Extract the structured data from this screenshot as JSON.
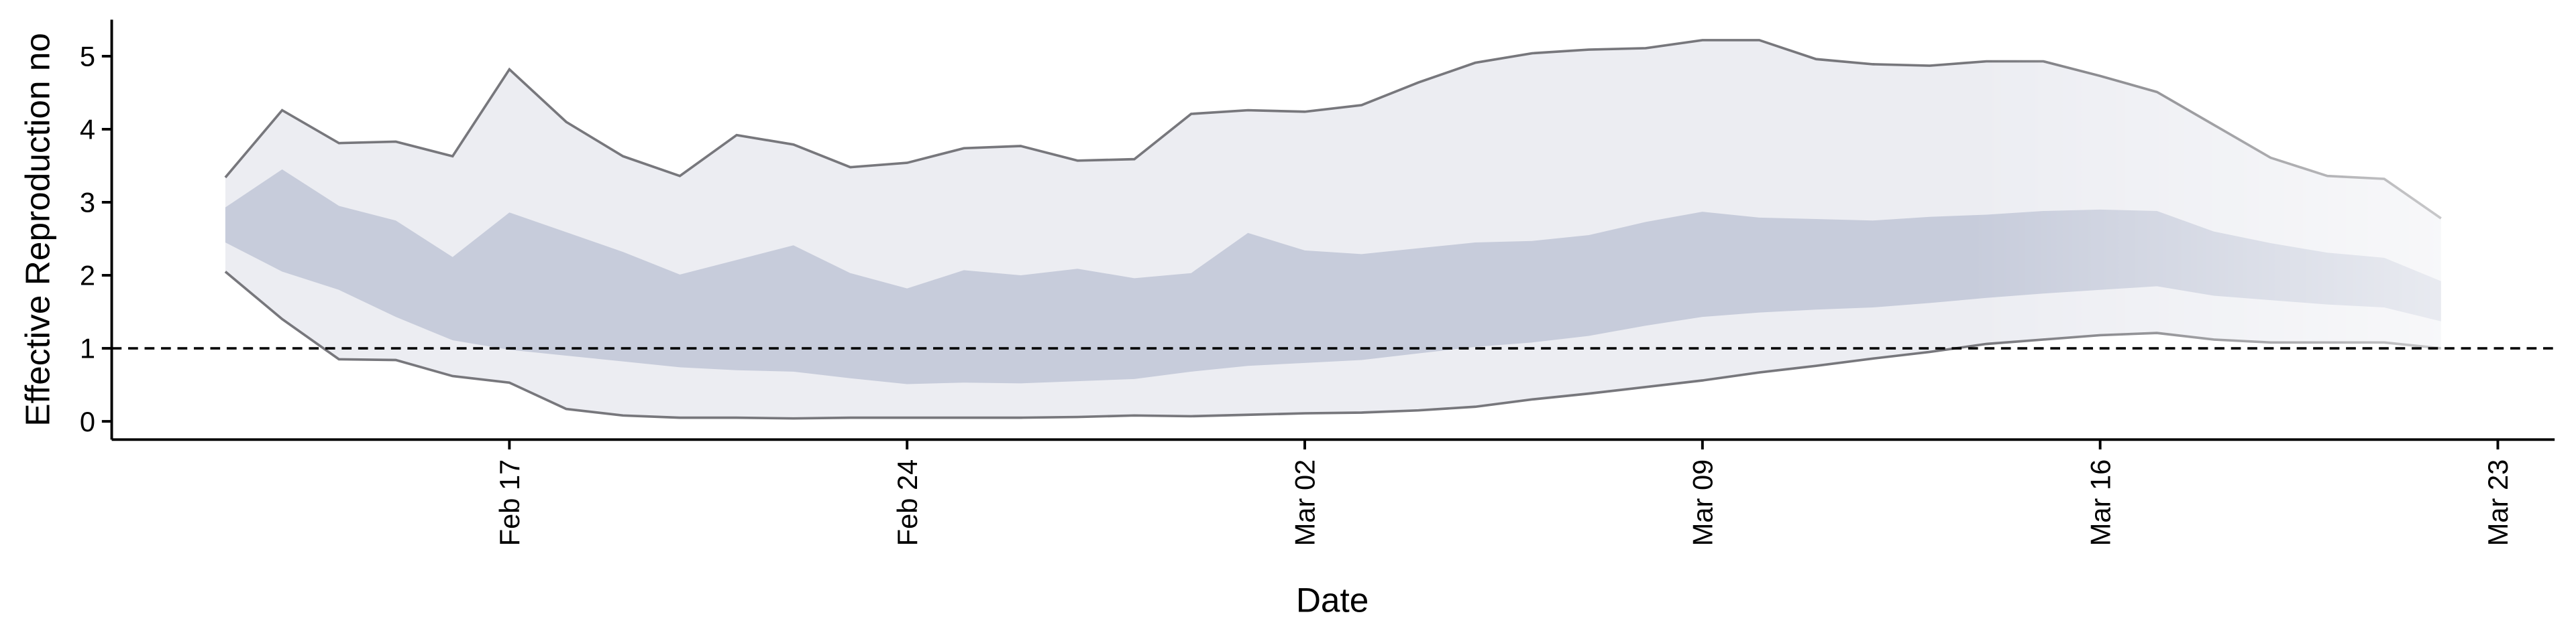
{
  "chart_data": {
    "type": "band",
    "xlabel": "Date",
    "ylabel": "Effective Reproduction no",
    "x": [
      "02-12",
      "02-13",
      "02-14",
      "02-15",
      "02-16",
      "02-17",
      "02-18",
      "02-19",
      "02-20",
      "02-21",
      "02-22",
      "02-23",
      "02-24",
      "02-25",
      "02-26",
      "02-27",
      "02-28",
      "02-29",
      "03-01",
      "03-02",
      "03-03",
      "03-04",
      "03-05",
      "03-06",
      "03-07",
      "03-08",
      "03-09",
      "03-10",
      "03-11",
      "03-12",
      "03-13",
      "03-14",
      "03-15",
      "03-16",
      "03-17",
      "03-18",
      "03-19",
      "03-20",
      "03-21",
      "03-22"
    ],
    "bands": [
      {
        "color": "#ecedf2",
        "edge_color": "#77777c",
        "upper": [
          3.34,
          4.26,
          3.81,
          3.83,
          3.63,
          4.82,
          4.1,
          3.63,
          3.36,
          3.92,
          3.79,
          3.48,
          3.54,
          3.74,
          3.77,
          3.57,
          3.59,
          4.21,
          4.26,
          4.24,
          4.33,
          4.64,
          4.91,
          5.04,
          5.09,
          5.11,
          5.22,
          5.22,
          4.96,
          4.89,
          4.87,
          4.93,
          4.93,
          4.73,
          4.51,
          4.06,
          3.61,
          3.36,
          3.32,
          2.78
        ],
        "lower": [
          2.05,
          1.4,
          0.85,
          0.84,
          0.62,
          0.53,
          0.17,
          0.08,
          0.05,
          0.05,
          0.04,
          0.05,
          0.05,
          0.05,
          0.05,
          0.06,
          0.08,
          0.07,
          0.09,
          0.11,
          0.12,
          0.15,
          0.2,
          0.3,
          0.38,
          0.47,
          0.56,
          0.67,
          0.76,
          0.86,
          0.95,
          1.06,
          1.12,
          1.18,
          1.21,
          1.12,
          1.08,
          1.08,
          1.08,
          1.0
        ]
      },
      {
        "color": "#c7ccdb",
        "upper": [
          2.93,
          3.45,
          2.95,
          2.75,
          2.25,
          2.86,
          2.59,
          2.32,
          2.01,
          2.21,
          2.41,
          2.03,
          1.82,
          2.07,
          2.0,
          2.09,
          1.96,
          2.03,
          2.58,
          2.34,
          2.29,
          2.37,
          2.45,
          2.47,
          2.55,
          2.73,
          2.87,
          2.79,
          2.77,
          2.75,
          2.8,
          2.83,
          2.88,
          2.9,
          2.88,
          2.6,
          2.44,
          2.31,
          2.24,
          1.92
        ],
        "lower": [
          2.45,
          2.05,
          1.8,
          1.43,
          1.11,
          0.98,
          0.9,
          0.82,
          0.74,
          0.7,
          0.68,
          0.59,
          0.51,
          0.53,
          0.52,
          0.55,
          0.58,
          0.68,
          0.76,
          0.8,
          0.84,
          0.93,
          1.02,
          1.08,
          1.17,
          1.31,
          1.43,
          1.49,
          1.53,
          1.56,
          1.62,
          1.69,
          1.75,
          1.8,
          1.85,
          1.72,
          1.66,
          1.6,
          1.56,
          1.37
        ]
      }
    ],
    "hline": 1,
    "xlim": [
      "02-10",
      "03-24"
    ],
    "xticks": [
      {
        "value": "02-17",
        "label": "Feb 17"
      },
      {
        "value": "02-24",
        "label": "Feb 24"
      },
      {
        "value": "03-02",
        "label": "Mar 02"
      },
      {
        "value": "03-09",
        "label": "Mar 09"
      },
      {
        "value": "03-16",
        "label": "Mar 16"
      },
      {
        "value": "03-23",
        "label": "Mar 23"
      }
    ],
    "ylim": [
      -0.25,
      5.5
    ],
    "yticks": [
      0,
      1,
      2,
      3,
      4,
      5
    ]
  }
}
